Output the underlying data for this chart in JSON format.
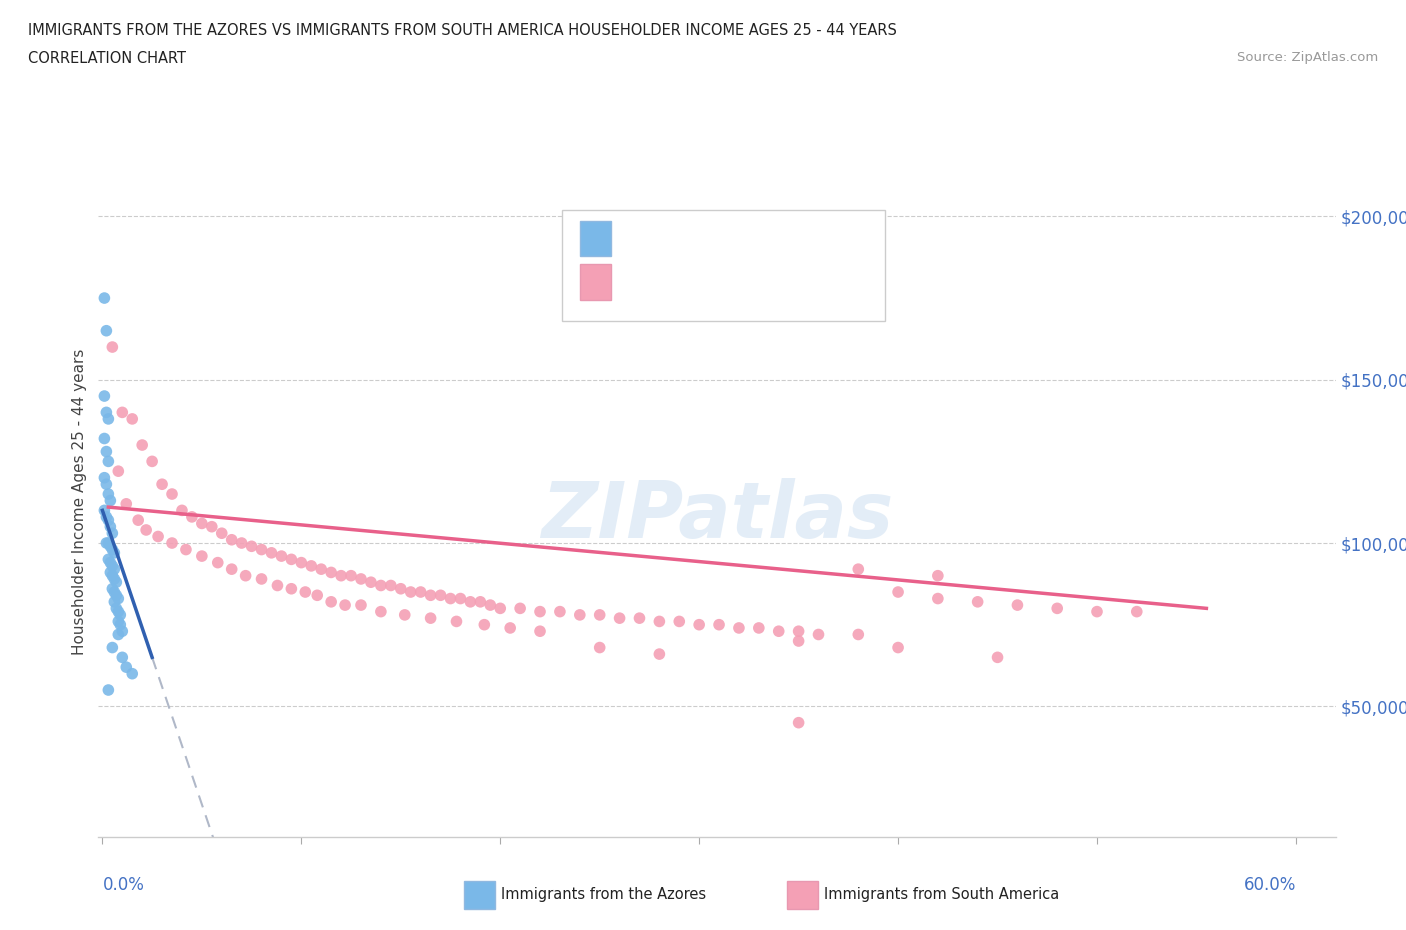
{
  "title_line1": "IMMIGRANTS FROM THE AZORES VS IMMIGRANTS FROM SOUTH AMERICA HOUSEHOLDER INCOME AGES 25 - 44 YEARS",
  "title_line2": "CORRELATION CHART",
  "source": "Source: ZipAtlas.com",
  "ylabel": "Householder Income Ages 25 - 44 years",
  "ytick_labels": [
    "$50,000",
    "$100,000",
    "$150,000",
    "$200,000"
  ],
  "ytick_values": [
    50000,
    100000,
    150000,
    200000
  ],
  "ymin": 10000,
  "ymax": 215000,
  "xmin": -0.002,
  "xmax": 0.62,
  "watermark": "ZIPatlas",
  "azores_color": "#7ab8e8",
  "sa_color": "#f4a0b5",
  "azores_line_color": "#3060b0",
  "sa_line_color": "#e8608a",
  "dashed_line_color": "#b0b8c8",
  "azores_scatter": [
    [
      0.001,
      175000
    ],
    [
      0.002,
      165000
    ],
    [
      0.001,
      145000
    ],
    [
      0.002,
      140000
    ],
    [
      0.003,
      138000
    ],
    [
      0.001,
      132000
    ],
    [
      0.002,
      128000
    ],
    [
      0.003,
      125000
    ],
    [
      0.001,
      120000
    ],
    [
      0.002,
      118000
    ],
    [
      0.003,
      115000
    ],
    [
      0.004,
      113000
    ],
    [
      0.001,
      110000
    ],
    [
      0.002,
      108000
    ],
    [
      0.003,
      107000
    ],
    [
      0.004,
      105000
    ],
    [
      0.005,
      103000
    ],
    [
      0.002,
      100000
    ],
    [
      0.003,
      100000
    ],
    [
      0.004,
      99000
    ],
    [
      0.005,
      98000
    ],
    [
      0.006,
      97000
    ],
    [
      0.003,
      95000
    ],
    [
      0.004,
      94000
    ],
    [
      0.005,
      93000
    ],
    [
      0.006,
      92000
    ],
    [
      0.004,
      91000
    ],
    [
      0.005,
      90000
    ],
    [
      0.006,
      89000
    ],
    [
      0.007,
      88000
    ],
    [
      0.005,
      86000
    ],
    [
      0.006,
      85000
    ],
    [
      0.007,
      84000
    ],
    [
      0.008,
      83000
    ],
    [
      0.006,
      82000
    ],
    [
      0.007,
      80000
    ],
    [
      0.008,
      79000
    ],
    [
      0.009,
      78000
    ],
    [
      0.008,
      76000
    ],
    [
      0.009,
      75000
    ],
    [
      0.01,
      73000
    ],
    [
      0.005,
      68000
    ],
    [
      0.01,
      65000
    ],
    [
      0.015,
      60000
    ],
    [
      0.008,
      72000
    ],
    [
      0.012,
      62000
    ],
    [
      0.003,
      55000
    ]
  ],
  "sa_scatter": [
    [
      0.005,
      160000
    ],
    [
      0.01,
      140000
    ],
    [
      0.015,
      138000
    ],
    [
      0.02,
      130000
    ],
    [
      0.025,
      125000
    ],
    [
      0.008,
      122000
    ],
    [
      0.03,
      118000
    ],
    [
      0.035,
      115000
    ],
    [
      0.012,
      112000
    ],
    [
      0.04,
      110000
    ],
    [
      0.045,
      108000
    ],
    [
      0.018,
      107000
    ],
    [
      0.05,
      106000
    ],
    [
      0.055,
      105000
    ],
    [
      0.022,
      104000
    ],
    [
      0.06,
      103000
    ],
    [
      0.028,
      102000
    ],
    [
      0.065,
      101000
    ],
    [
      0.07,
      100000
    ],
    [
      0.035,
      100000
    ],
    [
      0.075,
      99000
    ],
    [
      0.08,
      98000
    ],
    [
      0.042,
      98000
    ],
    [
      0.085,
      97000
    ],
    [
      0.09,
      96000
    ],
    [
      0.05,
      96000
    ],
    [
      0.095,
      95000
    ],
    [
      0.1,
      94000
    ],
    [
      0.058,
      94000
    ],
    [
      0.105,
      93000
    ],
    [
      0.11,
      92000
    ],
    [
      0.065,
      92000
    ],
    [
      0.115,
      91000
    ],
    [
      0.12,
      90000
    ],
    [
      0.072,
      90000
    ],
    [
      0.125,
      90000
    ],
    [
      0.13,
      89000
    ],
    [
      0.08,
      89000
    ],
    [
      0.135,
      88000
    ],
    [
      0.14,
      87000
    ],
    [
      0.088,
      87000
    ],
    [
      0.145,
      87000
    ],
    [
      0.15,
      86000
    ],
    [
      0.095,
      86000
    ],
    [
      0.155,
      85000
    ],
    [
      0.16,
      85000
    ],
    [
      0.102,
      85000
    ],
    [
      0.165,
      84000
    ],
    [
      0.17,
      84000
    ],
    [
      0.108,
      84000
    ],
    [
      0.175,
      83000
    ],
    [
      0.18,
      83000
    ],
    [
      0.115,
      82000
    ],
    [
      0.185,
      82000
    ],
    [
      0.19,
      82000
    ],
    [
      0.122,
      81000
    ],
    [
      0.195,
      81000
    ],
    [
      0.2,
      80000
    ],
    [
      0.13,
      81000
    ],
    [
      0.21,
      80000
    ],
    [
      0.22,
      79000
    ],
    [
      0.14,
      79000
    ],
    [
      0.23,
      79000
    ],
    [
      0.24,
      78000
    ],
    [
      0.152,
      78000
    ],
    [
      0.25,
      78000
    ],
    [
      0.26,
      77000
    ],
    [
      0.165,
      77000
    ],
    [
      0.27,
      77000
    ],
    [
      0.28,
      76000
    ],
    [
      0.178,
      76000
    ],
    [
      0.29,
      76000
    ],
    [
      0.3,
      75000
    ],
    [
      0.192,
      75000
    ],
    [
      0.31,
      75000
    ],
    [
      0.32,
      74000
    ],
    [
      0.205,
      74000
    ],
    [
      0.33,
      74000
    ],
    [
      0.34,
      73000
    ],
    [
      0.22,
      73000
    ],
    [
      0.35,
      73000
    ],
    [
      0.36,
      72000
    ],
    [
      0.38,
      72000
    ],
    [
      0.4,
      85000
    ],
    [
      0.42,
      83000
    ],
    [
      0.44,
      82000
    ],
    [
      0.46,
      81000
    ],
    [
      0.48,
      80000
    ],
    [
      0.5,
      79000
    ],
    [
      0.52,
      79000
    ],
    [
      0.38,
      92000
    ],
    [
      0.42,
      90000
    ],
    [
      0.35,
      70000
    ],
    [
      0.4,
      68000
    ],
    [
      0.45,
      65000
    ],
    [
      0.35,
      45000
    ],
    [
      0.25,
      68000
    ],
    [
      0.28,
      66000
    ]
  ]
}
